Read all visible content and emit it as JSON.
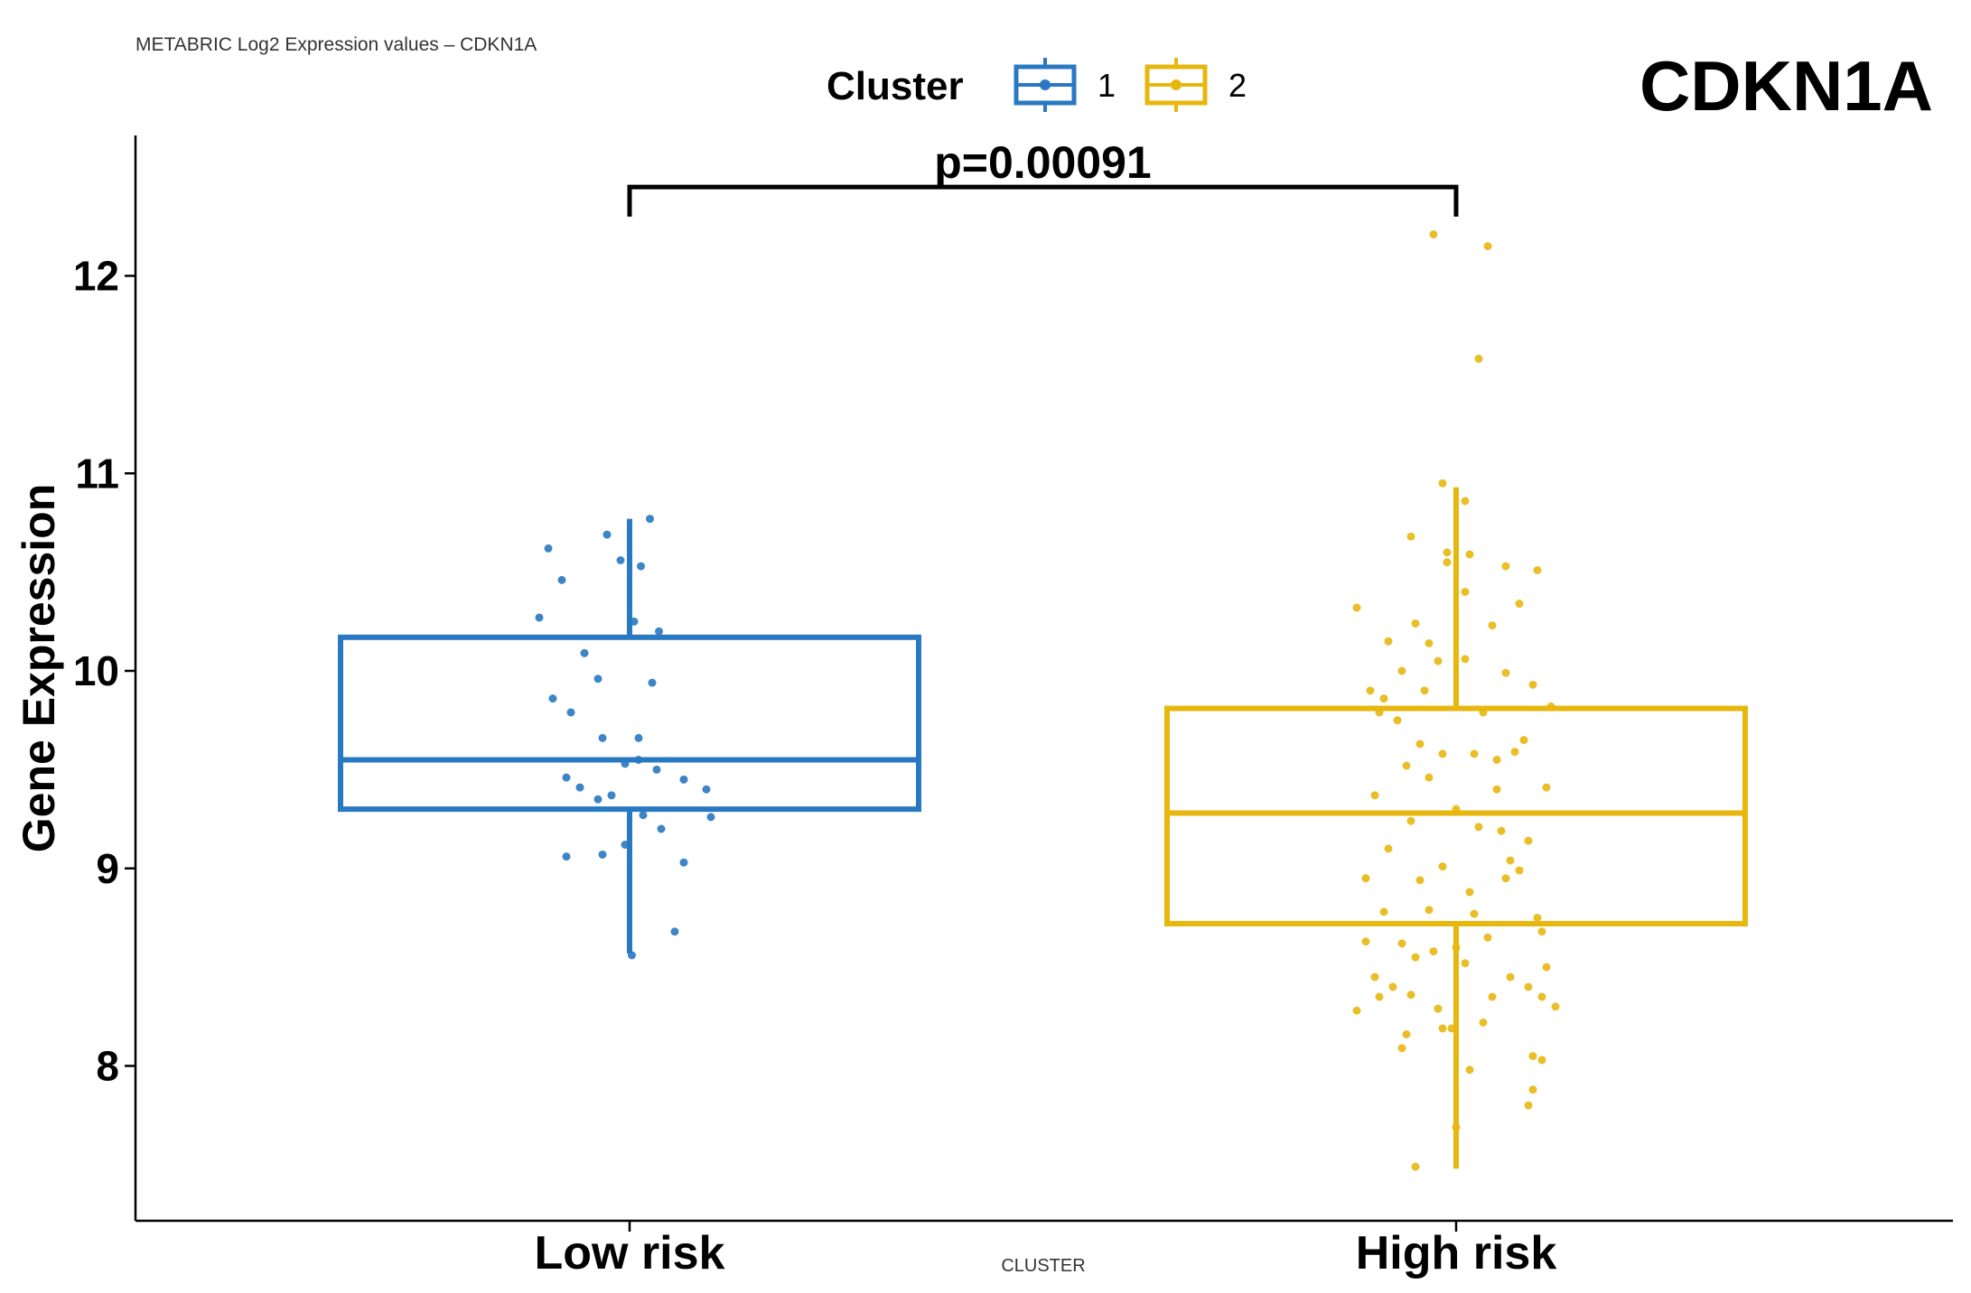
{
  "chart_data": {
    "type": "box",
    "subtitle": "METABRIC Log2 Expression values – CDKN1A",
    "title": "CDKN1A",
    "xlabel": "CLUSTER",
    "ylabel": "Gene Expression",
    "ylim": [
      7.25,
      12.7
    ],
    "yticks": [
      8,
      9,
      10,
      11,
      12
    ],
    "legend": {
      "title": "Cluster",
      "position": "top",
      "entries": [
        {
          "label": "1",
          "color": "#2878C2"
        },
        {
          "label": "2",
          "color": "#E7B70E"
        }
      ]
    },
    "comparison": {
      "label": "p=0.00091",
      "y": 12.45,
      "tick_bottom": 12.3
    },
    "categories": [
      "Low risk",
      "High risk"
    ],
    "series": [
      {
        "name": "1",
        "category": "Low risk",
        "color": "#2878C2",
        "box": {
          "min": 8.57,
          "q1": 9.3,
          "median": 9.55,
          "q3": 10.17,
          "max": 10.77
        },
        "points": [
          [
            -0.18,
            10.62
          ],
          [
            -0.05,
            10.69
          ],
          [
            -0.02,
            10.56
          ],
          [
            0.025,
            10.53
          ],
          [
            0.045,
            10.77
          ],
          [
            -0.15,
            10.46
          ],
          [
            -0.2,
            10.27
          ],
          [
            -0.1,
            10.09
          ],
          [
            -0.07,
            9.96
          ],
          [
            0.05,
            9.94
          ],
          [
            0.065,
            10.2
          ],
          [
            0.01,
            10.25
          ],
          [
            -0.17,
            9.86
          ],
          [
            -0.13,
            9.79
          ],
          [
            -0.06,
            9.66
          ],
          [
            0.02,
            9.66
          ],
          [
            0.06,
            9.5
          ],
          [
            -0.14,
            9.46
          ],
          [
            -0.11,
            9.41
          ],
          [
            -0.07,
            9.35
          ],
          [
            -0.04,
            9.37
          ],
          [
            0.03,
            9.27
          ],
          [
            0.07,
            9.2
          ],
          [
            0.12,
            9.45
          ],
          [
            0.17,
            9.4
          ],
          [
            0.18,
            9.26
          ],
          [
            -0.14,
            9.06
          ],
          [
            -0.06,
            9.07
          ],
          [
            -0.01,
            9.12
          ],
          [
            0.12,
            9.03
          ],
          [
            0.1,
            8.68
          ],
          [
            0.005,
            8.56
          ],
          [
            -0.01,
            9.53
          ],
          [
            0.02,
            9.55
          ]
        ]
      },
      {
        "name": "2",
        "category": "High risk",
        "color": "#E7B70E",
        "box": {
          "min": 7.48,
          "q1": 8.72,
          "median": 9.28,
          "q3": 9.81,
          "max": 10.93
        },
        "points": [
          [
            -0.05,
            12.21
          ],
          [
            0.07,
            12.15
          ],
          [
            0.05,
            11.58
          ],
          [
            -0.03,
            10.95
          ],
          [
            0.02,
            10.86
          ],
          [
            -0.1,
            10.68
          ],
          [
            -0.02,
            10.6
          ],
          [
            0.03,
            10.59
          ],
          [
            -0.22,
            10.32
          ],
          [
            0.11,
            10.53
          ],
          [
            0.18,
            10.51
          ],
          [
            -0.02,
            10.55
          ],
          [
            0.02,
            10.4
          ],
          [
            -0.15,
            10.15
          ],
          [
            -0.09,
            10.24
          ],
          [
            -0.06,
            10.14
          ],
          [
            0.14,
            10.34
          ],
          [
            0.08,
            10.23
          ],
          [
            -0.12,
            10.0
          ],
          [
            -0.04,
            10.05
          ],
          [
            0.11,
            9.99
          ],
          [
            0.02,
            10.06
          ],
          [
            -0.19,
            9.9
          ],
          [
            -0.13,
            9.75
          ],
          [
            -0.16,
            9.86
          ],
          [
            -0.08,
            9.63
          ],
          [
            0.17,
            9.93
          ],
          [
            0.21,
            9.82
          ],
          [
            0.06,
            9.79
          ],
          [
            0.04,
            9.58
          ],
          [
            -0.17,
            9.79
          ],
          [
            -0.11,
            9.52
          ],
          [
            -0.03,
            9.58
          ],
          [
            0.13,
            9.59
          ],
          [
            0.09,
            9.55
          ],
          [
            0.0,
            9.3
          ],
          [
            -0.18,
            9.37
          ],
          [
            -0.06,
            9.46
          ],
          [
            0.15,
            9.65
          ],
          [
            0.2,
            9.41
          ],
          [
            -0.1,
            9.24
          ],
          [
            0.05,
            9.21
          ],
          [
            0.1,
            9.19
          ],
          [
            0.16,
            9.14
          ],
          [
            -0.15,
            9.1
          ],
          [
            -0.03,
            9.01
          ],
          [
            0.12,
            9.04
          ],
          [
            -0.2,
            8.95
          ],
          [
            -0.08,
            8.94
          ],
          [
            0.03,
            8.88
          ],
          [
            0.11,
            8.95
          ],
          [
            0.14,
            8.99
          ],
          [
            -0.16,
            8.78
          ],
          [
            -0.06,
            8.79
          ],
          [
            0.04,
            8.77
          ],
          [
            0.18,
            8.75
          ],
          [
            0.19,
            8.68
          ],
          [
            -0.2,
            8.63
          ],
          [
            -0.12,
            8.62
          ],
          [
            -0.09,
            8.55
          ],
          [
            0.0,
            8.6
          ],
          [
            0.07,
            8.65
          ],
          [
            -0.05,
            8.58
          ],
          [
            0.02,
            8.52
          ],
          [
            0.12,
            8.45
          ],
          [
            -0.18,
            8.45
          ],
          [
            -0.14,
            8.4
          ],
          [
            0.16,
            8.4
          ],
          [
            0.2,
            8.5
          ],
          [
            -0.17,
            8.35
          ],
          [
            -0.1,
            8.36
          ],
          [
            0.08,
            8.35
          ],
          [
            0.19,
            8.35
          ],
          [
            -0.22,
            8.28
          ],
          [
            0.22,
            8.3
          ],
          [
            -0.01,
            8.19
          ],
          [
            -0.11,
            8.16
          ],
          [
            -0.12,
            8.09
          ],
          [
            -0.03,
            8.19
          ],
          [
            0.17,
            8.05
          ],
          [
            0.19,
            8.03
          ],
          [
            0.03,
            7.98
          ],
          [
            0.17,
            7.88
          ],
          [
            0.16,
            7.8
          ],
          [
            0.0,
            7.69
          ],
          [
            -0.09,
            7.49
          ],
          [
            -0.04,
            8.29
          ],
          [
            0.06,
            8.22
          ],
          [
            -0.07,
            9.9
          ],
          [
            0.09,
            9.4
          ]
        ]
      }
    ]
  }
}
